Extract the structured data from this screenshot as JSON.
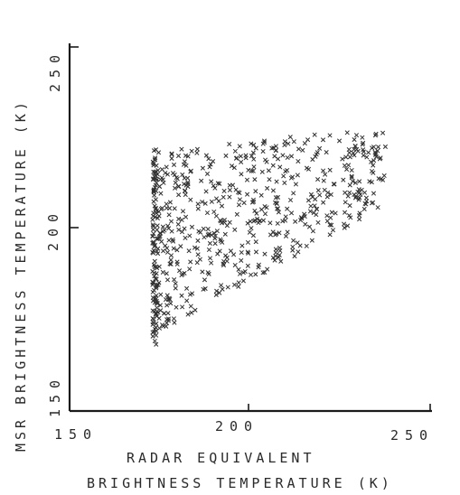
{
  "chart_data": {
    "type": "scatter",
    "title": "",
    "xlabel_line1": "RADAR EQUIVALENT",
    "xlabel_line2": "BRIGHTNESS TEMPERATURE (K)",
    "ylabel": "MSR BRIGHTNESS TEMPERATURE (K)",
    "xlim": [
      150,
      250
    ],
    "ylim": [
      150,
      250
    ],
    "x_ticks": [
      "150",
      "200",
      "250"
    ],
    "y_ticks": [
      "150",
      "200",
      "250"
    ],
    "y_tick_labels_shown": [
      "1 5 0",
      "2 0 0",
      "2 5 0"
    ],
    "marker": "x",
    "grid": false,
    "legend": "none",
    "series": [
      {
        "points_description": "dense cloud of x markers; left boundary near x=173 K spanning y≈168–222 K; upper envelope rising to y≈226 K near x≈235 K; lower envelope rising from y≈168 K at x≈173 K to y≈200 K at x≈230 K",
        "x_min": 173,
        "x_max": 238,
        "y_min": 168,
        "y_max": 227
      }
    ]
  }
}
